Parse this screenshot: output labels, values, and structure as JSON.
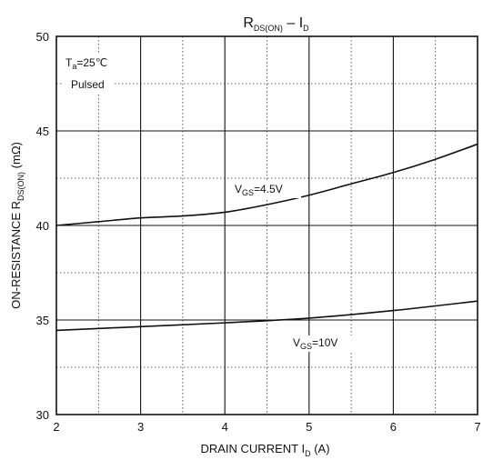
{
  "chart_data": {
    "type": "line",
    "title": "R",
    "title_sub": "DS(ON)",
    "title_mid": " – I",
    "title_sub2": "D",
    "xlabel_main": "DRAIN CURRENT I",
    "xlabel_sub": "D",
    "xlabel_unit": " (A)",
    "ylabel_main": "ON-RESISTANCE R",
    "ylabel_sub": "DS(ON)",
    "ylabel_unit": " (mΩ)",
    "xlim": [
      2,
      7
    ],
    "ylim": [
      30,
      50
    ],
    "x_ticks": [
      "2",
      "3",
      "4",
      "5",
      "6",
      "7"
    ],
    "y_ticks": [
      "30",
      "35",
      "40",
      "45",
      "50"
    ],
    "grid": true,
    "conditions": {
      "ta": "=25℃",
      "ta_sym": "T",
      "ta_sub": "a",
      "mode": "Pulsed"
    },
    "series": [
      {
        "name": "=4.5V",
        "label_sym": "V",
        "label_sub": "GS",
        "color": "#111111",
        "x": [
          2,
          2.5,
          3,
          3.5,
          4,
          4.5,
          5,
          5.5,
          6,
          6.5,
          7
        ],
        "y": [
          40.0,
          40.2,
          40.4,
          40.5,
          40.7,
          41.1,
          41.6,
          42.2,
          42.8,
          43.5,
          44.3
        ]
      },
      {
        "name": "=10V",
        "label_sym": "V",
        "label_sub": "GS",
        "color": "#111111",
        "x": [
          2,
          3,
          4,
          5,
          6,
          7
        ],
        "y": [
          34.45,
          34.65,
          34.85,
          35.1,
          35.5,
          36.0
        ]
      }
    ]
  }
}
